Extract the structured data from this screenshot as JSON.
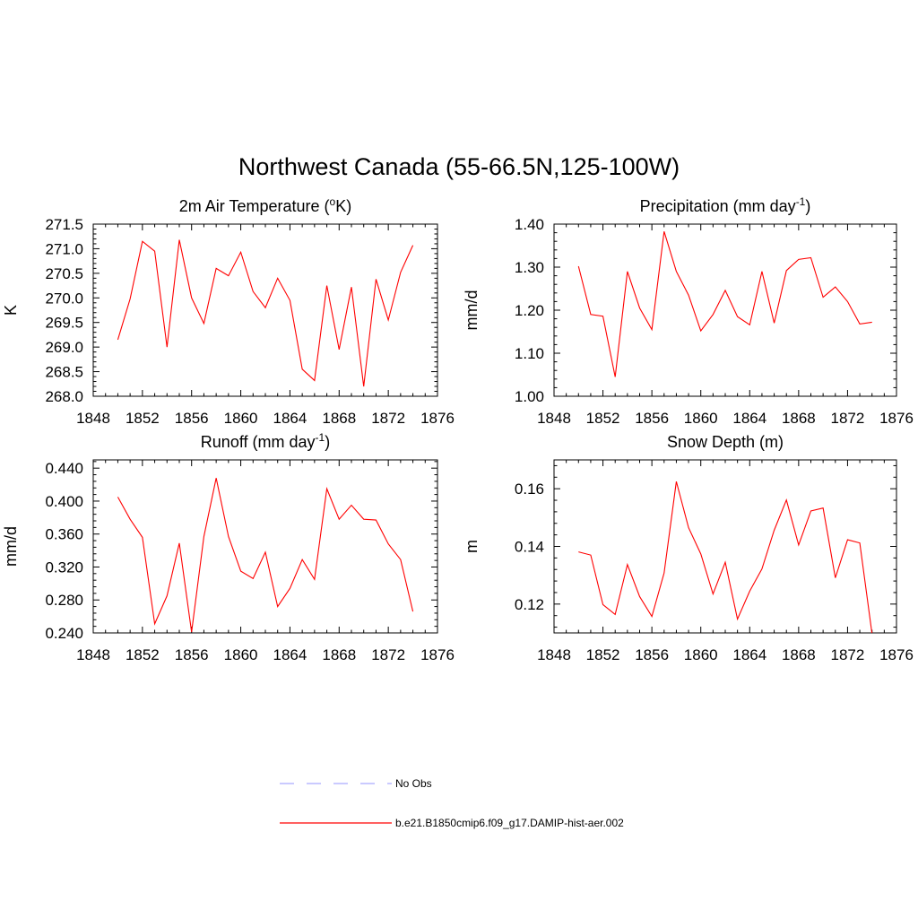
{
  "title": "Northwest Canada (55-66.5N,125-100W)",
  "legend": [
    {
      "label": "No Obs",
      "color": "#aaaaff",
      "dashed": true
    },
    {
      "label": "b.e21.B1850cmip6.f09_g17.DAMIP-hist-aer.002",
      "color": "#ff0000",
      "dashed": false
    }
  ],
  "chart_data": [
    {
      "type": "line",
      "title_main": "2m Air Temperature (",
      "title_sup": "o",
      "title_tail": "K)",
      "ylabel": "K",
      "xlim": [
        1848,
        1876
      ],
      "ylim": [
        268.0,
        271.5
      ],
      "xticks": [
        1848,
        1852,
        1856,
        1860,
        1864,
        1868,
        1872,
        1876
      ],
      "yticks": [
        "268.0",
        "268.5",
        "269.0",
        "269.5",
        "270.0",
        "270.5",
        "271.0",
        "271.5"
      ],
      "color": "#ff0000",
      "x": [
        1850,
        1851,
        1852,
        1853,
        1854,
        1855,
        1856,
        1857,
        1858,
        1859,
        1860,
        1861,
        1862,
        1863,
        1864,
        1865,
        1866,
        1867,
        1868,
        1869,
        1870,
        1871,
        1872,
        1873,
        1874
      ],
      "values": [
        269.15,
        269.98,
        271.15,
        270.95,
        269.0,
        271.18,
        270.0,
        269.48,
        270.6,
        270.45,
        270.93,
        270.13,
        269.8,
        270.4,
        269.95,
        268.55,
        268.32,
        270.25,
        268.95,
        270.22,
        268.2,
        270.38,
        269.55,
        270.52,
        271.07
      ]
    },
    {
      "type": "line",
      "title_main": "Precipitation (mm day",
      "title_sup": "-1",
      "title_tail": ")",
      "ylabel": "mm/d",
      "xlim": [
        1848,
        1876
      ],
      "ylim": [
        1.0,
        1.4
      ],
      "xticks": [
        1848,
        1852,
        1856,
        1860,
        1864,
        1868,
        1872,
        1876
      ],
      "yticks": [
        "1.00",
        "1.10",
        "1.20",
        "1.30",
        "1.40"
      ],
      "color": "#ff0000",
      "x": [
        1850,
        1851,
        1852,
        1853,
        1854,
        1855,
        1856,
        1857,
        1858,
        1859,
        1860,
        1861,
        1862,
        1863,
        1864,
        1865,
        1866,
        1867,
        1868,
        1869,
        1870,
        1871,
        1872,
        1873,
        1874
      ],
      "values": [
        1.302,
        1.19,
        1.186,
        1.045,
        1.29,
        1.205,
        1.155,
        1.383,
        1.29,
        1.235,
        1.152,
        1.19,
        1.246,
        1.185,
        1.166,
        1.29,
        1.17,
        1.292,
        1.318,
        1.322,
        1.23,
        1.254,
        1.22,
        1.168,
        1.172
      ]
    },
    {
      "type": "line",
      "title_main": "Runoff (mm day",
      "title_sup": "-1",
      "title_tail": ")",
      "ylabel": "mm/d",
      "xlim": [
        1848,
        1876
      ],
      "ylim": [
        0.24,
        0.45
      ],
      "xticks": [
        1848,
        1852,
        1856,
        1860,
        1864,
        1868,
        1872,
        1876
      ],
      "yticks": [
        "0.240",
        "0.280",
        "0.320",
        "0.360",
        "0.400",
        "0.440"
      ],
      "color": "#ff0000",
      "x": [
        1850,
        1851,
        1852,
        1853,
        1854,
        1855,
        1856,
        1857,
        1858,
        1859,
        1860,
        1861,
        1862,
        1863,
        1864,
        1865,
        1866,
        1867,
        1868,
        1869,
        1870,
        1871,
        1872,
        1873,
        1874
      ],
      "values": [
        0.405,
        0.378,
        0.356,
        0.251,
        0.285,
        0.349,
        0.241,
        0.357,
        0.428,
        0.357,
        0.315,
        0.306,
        0.338,
        0.272,
        0.294,
        0.329,
        0.305,
        0.415,
        0.378,
        0.395,
        0.378,
        0.377,
        0.348,
        0.329,
        0.266
      ]
    },
    {
      "type": "line",
      "title_main": "Snow Depth (m)",
      "title_sup": "",
      "title_tail": "",
      "ylabel": "m",
      "xlim": [
        1848,
        1876
      ],
      "ylim": [
        0.11,
        0.17
      ],
      "xticks": [
        1848,
        1852,
        1856,
        1860,
        1864,
        1868,
        1872,
        1876
      ],
      "yticks": [
        "0.12",
        "0.14",
        "0.16"
      ],
      "color": "#ff0000",
      "x": [
        1850,
        1851,
        1852,
        1853,
        1854,
        1855,
        1856,
        1857,
        1858,
        1859,
        1860,
        1861,
        1862,
        1863,
        1864,
        1865,
        1866,
        1867,
        1868,
        1869,
        1870,
        1871,
        1872,
        1873,
        1874
      ],
      "values": [
        0.1381,
        0.137,
        0.1198,
        0.1164,
        0.1337,
        0.1226,
        0.1157,
        0.1308,
        0.1625,
        0.1465,
        0.1374,
        0.1235,
        0.1345,
        0.1148,
        0.1245,
        0.1322,
        0.1456,
        0.1561,
        0.1405,
        0.1523,
        0.1533,
        0.1291,
        0.1423,
        0.1412,
        0.1097
      ]
    }
  ]
}
